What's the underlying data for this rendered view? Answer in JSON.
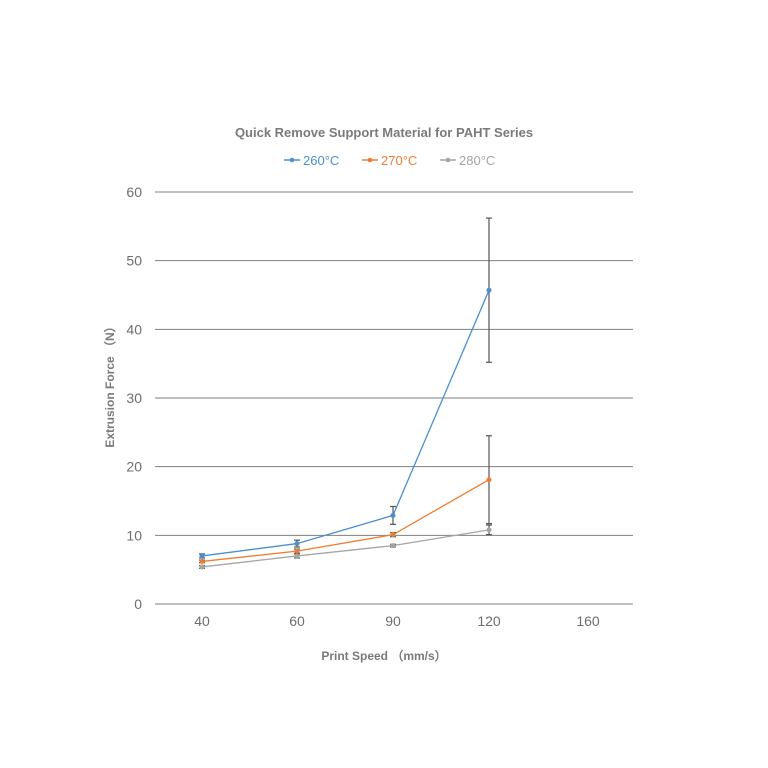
{
  "chart_data": {
    "type": "line",
    "title": "Quick Remove Support Material for PAHT Series",
    "xlabel": "Print Speed （mm/s）",
    "ylabel": "Extrusion Force （N）",
    "x_ticks": [
      40,
      60,
      90,
      120,
      160
    ],
    "y_ticks": [
      0,
      10,
      20,
      30,
      40,
      50,
      60
    ],
    "ylim": [
      0,
      60
    ],
    "grid": "horizontal",
    "legend_position": "top",
    "series": [
      {
        "name": "260°C",
        "color": "#4a8fcf",
        "x": [
          40,
          60,
          90,
          120
        ],
        "y": [
          7.0,
          8.8,
          12.9,
          45.7
        ],
        "error": [
          0.3,
          0.5,
          1.3,
          10.5
        ]
      },
      {
        "name": "270°C",
        "color": "#ee7d31",
        "x": [
          40,
          60,
          90,
          120
        ],
        "y": [
          6.2,
          7.7,
          10.1,
          18.1
        ],
        "error": [
          0.2,
          0.3,
          0.3,
          6.4
        ]
      },
      {
        "name": "280°C",
        "color": "#a5a5a5",
        "x": [
          40,
          60,
          90,
          120
        ],
        "y": [
          5.4,
          7.0,
          8.5,
          10.8
        ],
        "error": [
          0.2,
          0.3,
          0.2,
          0.7
        ]
      }
    ],
    "error_bar_color": "#555555"
  }
}
